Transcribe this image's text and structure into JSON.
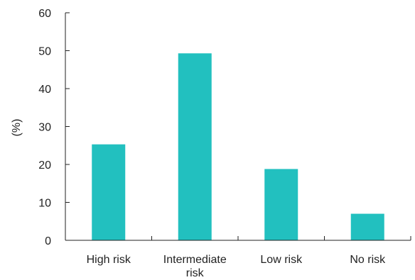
{
  "chart_data": {
    "type": "bar",
    "title": "",
    "xlabel": "",
    "ylabel": "(%)",
    "ylim": [
      0,
      60
    ],
    "yticks": [
      0,
      10,
      20,
      30,
      40,
      50,
      60
    ],
    "categories": [
      [
        "High risk"
      ],
      [
        "Intermediate",
        "risk"
      ],
      [
        "Low risk"
      ],
      [
        "No risk"
      ]
    ],
    "values": [
      25.3,
      49.3,
      18.8,
      7.0
    ],
    "bar_color": "#22c0bf",
    "grid": false,
    "legend": "none"
  }
}
